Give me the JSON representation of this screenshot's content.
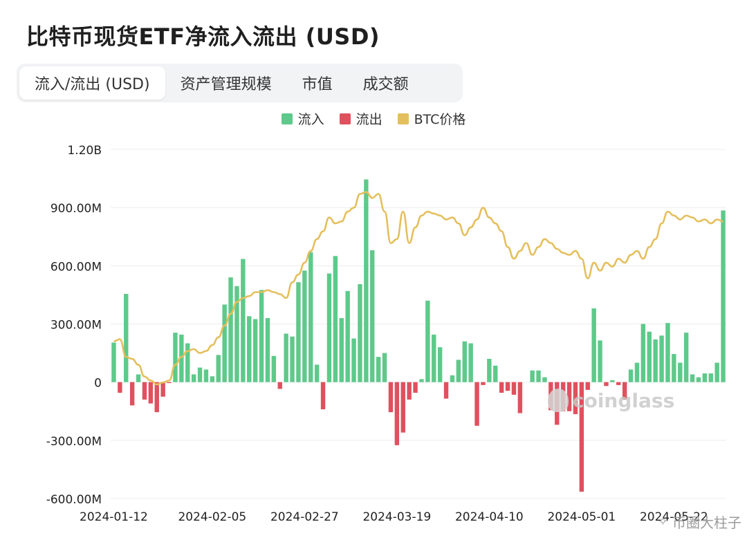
{
  "title": "比特币现货ETF净流入流出 (USD)",
  "tabs": [
    {
      "label": "流入/流出 (USD)",
      "active": true
    },
    {
      "label": "资产管理规模",
      "active": false
    },
    {
      "label": "市值",
      "active": false
    },
    {
      "label": "成交额",
      "active": false
    }
  ],
  "legend": [
    {
      "label": "流入",
      "color": "#5ec98a"
    },
    {
      "label": "流出",
      "color": "#e0505e"
    },
    {
      "label": "BTC价格",
      "color": "#e4bf5d"
    }
  ],
  "watermark": "coinglass",
  "credit": "币圈大柱子",
  "credit_icon": "wechat-icon",
  "chart_data": {
    "type": "bar",
    "ylim": [
      -600000000,
      1200000000
    ],
    "yticks": [
      1200000000,
      900000000,
      600000000,
      300000000,
      0,
      -300000000,
      -600000000
    ],
    "yticklabels": [
      "1.20B",
      "900.00M",
      "600.00M",
      "300.00M",
      "0",
      "-300.00M",
      "-600.00M"
    ],
    "xticklabels": [
      "2024-01-12",
      "2024-02-05",
      "2024-02-27",
      "2024-03-19",
      "2024-04-10",
      "2024-05-01",
      "2024-05-22"
    ],
    "xtick_index": [
      0,
      16,
      31,
      46,
      61,
      76,
      91
    ],
    "grid": true,
    "legend_position": "top-center",
    "colors": {
      "inflow": "#5ec98a",
      "outflow": "#e0505e",
      "price": "#e4bf5d"
    },
    "flow": [
      204,
      -55,
      455,
      -120,
      40,
      -90,
      -110,
      -155,
      -75,
      -5,
      255,
      245,
      200,
      40,
      75,
      65,
      30,
      140,
      400,
      540,
      495,
      635,
      340,
      325,
      475,
      330,
      135,
      -35,
      250,
      235,
      515,
      575,
      670,
      90,
      -140,
      560,
      650,
      330,
      470,
      225,
      505,
      1045,
      680,
      130,
      150,
      -155,
      -325,
      -260,
      -90,
      -55,
      15,
      420,
      245,
      180,
      -85,
      35,
      115,
      210,
      200,
      -225,
      -15,
      120,
      85,
      -55,
      -45,
      -65,
      -160,
      0,
      60,
      60,
      25,
      -145,
      -220,
      -150,
      -150,
      -165,
      -565,
      -40,
      380,
      215,
      -20,
      10,
      -15,
      -90,
      65,
      100,
      300,
      260,
      220,
      240,
      305,
      145,
      100,
      255,
      40,
      25,
      45,
      45,
      100,
      885
    ],
    "btc_price_normalized": [
      0.22,
      0.23,
      0.14,
      0.13,
      0.1,
      0.04,
      0.02,
      0.0,
      0.01,
      0.02,
      0.1,
      0.14,
      0.17,
      0.18,
      0.16,
      0.17,
      0.2,
      0.24,
      0.3,
      0.36,
      0.42,
      0.44,
      0.45,
      0.47,
      0.47,
      0.48,
      0.47,
      0.46,
      0.44,
      0.52,
      0.56,
      0.62,
      0.68,
      0.74,
      0.78,
      0.85,
      0.82,
      0.83,
      0.88,
      0.9,
      0.97,
      0.98,
      0.95,
      0.97,
      0.88,
      0.72,
      0.74,
      0.88,
      0.72,
      0.8,
      0.86,
      0.88,
      0.87,
      0.86,
      0.84,
      0.85,
      0.82,
      0.76,
      0.8,
      0.84,
      0.9,
      0.85,
      0.82,
      0.78,
      0.7,
      0.64,
      0.68,
      0.72,
      0.66,
      0.7,
      0.74,
      0.72,
      0.69,
      0.67,
      0.66,
      0.68,
      0.64,
      0.54,
      0.62,
      0.58,
      0.62,
      0.6,
      0.64,
      0.62,
      0.66,
      0.68,
      0.64,
      0.7,
      0.74,
      0.82,
      0.88,
      0.86,
      0.84,
      0.86,
      0.85,
      0.83,
      0.84,
      0.82,
      0.84,
      0.83
    ]
  }
}
